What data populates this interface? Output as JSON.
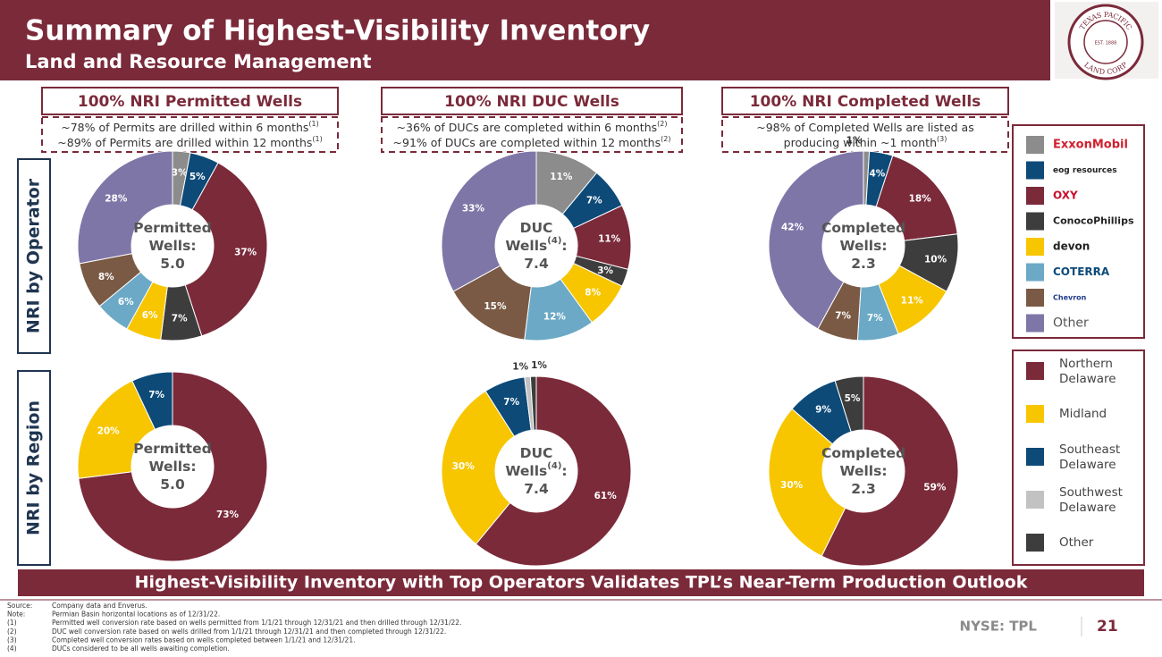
{
  "header": {
    "title": "Summary of Highest-Visibility Inventory",
    "subtitle": "Land and Resource Management"
  },
  "logo": {
    "top": "TEXAS PACIFIC",
    "bottom": "LAND CORP",
    "est": "EST. 1888"
  },
  "sections": [
    {
      "title": "100%  NRI Permitted Wells",
      "notes": [
        {
          "text": "~78% of Permits are drilled within 6 months",
          "ref": "(1)"
        },
        {
          "text": "~89% of Permits are drilled within 12 months",
          "ref": "(1)"
        }
      ]
    },
    {
      "title": "100% NRI DUC Wells",
      "notes": [
        {
          "text": "~36% of DUCs are completed within 6 months",
          "ref": "(2)"
        },
        {
          "text": "~91% of DUCs are completed within 12 months",
          "ref": "(2)"
        }
      ]
    },
    {
      "title": "100%  NRI Completed Wells",
      "notes": [
        {
          "text": "~98% of Completed Wells are listed as"
        },
        {
          "text": "producing within ~1 month",
          "ref": "(3)"
        }
      ]
    }
  ],
  "row_labels": [
    "NRI by Operator",
    "NRI by Region"
  ],
  "chart_data": [
    {
      "type": "pie",
      "categories": [
        "ExxonMobil",
        "eog resources",
        "OXY",
        "ConocoPhillips",
        "devon",
        "COTERRA",
        "Chevron",
        "Other"
      ],
      "colors": [
        "#8c8c8c",
        "#0d4a78",
        "#7b2a3a",
        "#3d3d3d",
        "#f7c600",
        "#6ba9c6",
        "#7a5a45",
        "#7f76a8"
      ],
      "values": [
        3,
        5,
        37,
        7,
        6,
        6,
        8,
        28
      ],
      "value_labels": [
        "3%",
        "5%",
        "37%",
        "7%",
        "6%",
        "6%",
        "8%",
        "28%"
      ],
      "center_label": [
        [
          {
            "text": "Permitted"
          }
        ],
        [
          {
            "text": "Wells:"
          }
        ],
        [
          {
            "text": "5.0"
          }
        ]
      ]
    },
    {
      "type": "pie",
      "categories": [
        "ExxonMobil",
        "eog resources",
        "OXY",
        "ConocoPhillips",
        "devon",
        "COTERRA",
        "Chevron",
        "Other"
      ],
      "colors": [
        "#8c8c8c",
        "#0d4a78",
        "#7b2a3a",
        "#3d3d3d",
        "#f7c600",
        "#6ba9c6",
        "#7a5a45",
        "#7f76a8"
      ],
      "values": [
        11,
        7,
        11,
        3,
        8,
        12,
        15,
        33
      ],
      "value_labels": [
        "11%",
        "7%",
        "11%",
        "3%",
        "8%",
        "12%",
        "15%",
        "33%"
      ],
      "center_label": [
        [
          {
            "text": "DUC"
          }
        ],
        [
          {
            "text": "Wells"
          },
          {
            "text": "(4)",
            "sup": true
          },
          {
            "text": ":"
          }
        ],
        [
          {
            "text": "7.4"
          }
        ]
      ]
    },
    {
      "type": "pie",
      "categories": [
        "ExxonMobil",
        "eog resources",
        "OXY",
        "ConocoPhillips",
        "devon",
        "COTERRA",
        "Chevron",
        "Other"
      ],
      "colors": [
        "#8c8c8c",
        "#0d4a78",
        "#7b2a3a",
        "#3d3d3d",
        "#f7c600",
        "#6ba9c6",
        "#7a5a45",
        "#7f76a8"
      ],
      "values": [
        1,
        4,
        18,
        10,
        11,
        7,
        7,
        42
      ],
      "value_labels": [
        "1%",
        "4%",
        "18%",
        "10%",
        "11%",
        "7%",
        "7%",
        "42%"
      ],
      "center_label": [
        [
          {
            "text": "Completed"
          }
        ],
        [
          {
            "text": "Wells:"
          }
        ],
        [
          {
            "text": "2.3"
          }
        ]
      ]
    },
    {
      "type": "pie",
      "categories": [
        "Northern Delaware",
        "Midland",
        "Southeast Delaware"
      ],
      "colors": [
        "#7b2a3a",
        "#f7c600",
        "#0d4a78"
      ],
      "values": [
        73,
        20,
        7
      ],
      "value_labels": [
        "73%",
        "20%",
        "7%"
      ],
      "center_label": [
        [
          {
            "text": "Permitted"
          }
        ],
        [
          {
            "text": "Wells:"
          }
        ],
        [
          {
            "text": "5.0"
          }
        ]
      ]
    },
    {
      "type": "pie",
      "categories": [
        "Northern Delaware",
        "Midland",
        "Southeast Delaware",
        "Southwest Delaware",
        "Other"
      ],
      "colors": [
        "#7b2a3a",
        "#f7c600",
        "#0d4a78",
        "#c2c2c2",
        "#3d3d3d"
      ],
      "values": [
        61,
        30,
        7,
        1,
        1
      ],
      "value_labels": [
        "61%",
        "30%",
        "7%",
        "1%",
        "1%"
      ],
      "center_label": [
        [
          {
            "text": "DUC"
          }
        ],
        [
          {
            "text": "Wells"
          },
          {
            "text": "(4)",
            "sup": true
          },
          {
            "text": ":"
          }
        ],
        [
          {
            "text": "7.4"
          }
        ]
      ]
    },
    {
      "type": "pie",
      "categories": [
        "Northern Delaware",
        "Midland",
        "Southeast Delaware",
        "Other"
      ],
      "colors": [
        "#7b2a3a",
        "#f7c600",
        "#0d4a78",
        "#3d3d3d"
      ],
      "values": [
        59,
        30,
        9,
        5
      ],
      "value_labels": [
        "59%",
        "30%",
        "9%",
        "5%"
      ],
      "center_label": [
        [
          {
            "text": "Completed"
          }
        ],
        [
          {
            "text": "Wells:"
          }
        ],
        [
          {
            "text": "2.3"
          }
        ]
      ]
    }
  ],
  "banner": "Highest-Visibility Inventory with Top Operators Validates TPL’s Near-Term Production Outlook",
  "footnotes": [
    {
      "label": "Source:",
      "text": "Company data and Enverus."
    },
    {
      "label": "Note:",
      "text": "Permian Basin horizontal locations as of 12/31/22."
    },
    {
      "label": "(1)",
      "text": "Permitted well conversion rate based on wells permitted from 1/1/21 through 12/31/21 and then drilled through 12/31/22."
    },
    {
      "label": "(2)",
      "text": "DUC well conversion rate based on wells drilled from 1/1/21 through 12/31/21 and then completed through 12/31/22."
    },
    {
      "label": "(3)",
      "text": "Completed well conversion rates based on wells completed between 1/1/21 and 12/31/21."
    },
    {
      "label": "(4)",
      "text": "DUCs considered to be all wells awaiting completion."
    }
  ],
  "ticker": "NYSE: TPL",
  "page_number": 21
}
